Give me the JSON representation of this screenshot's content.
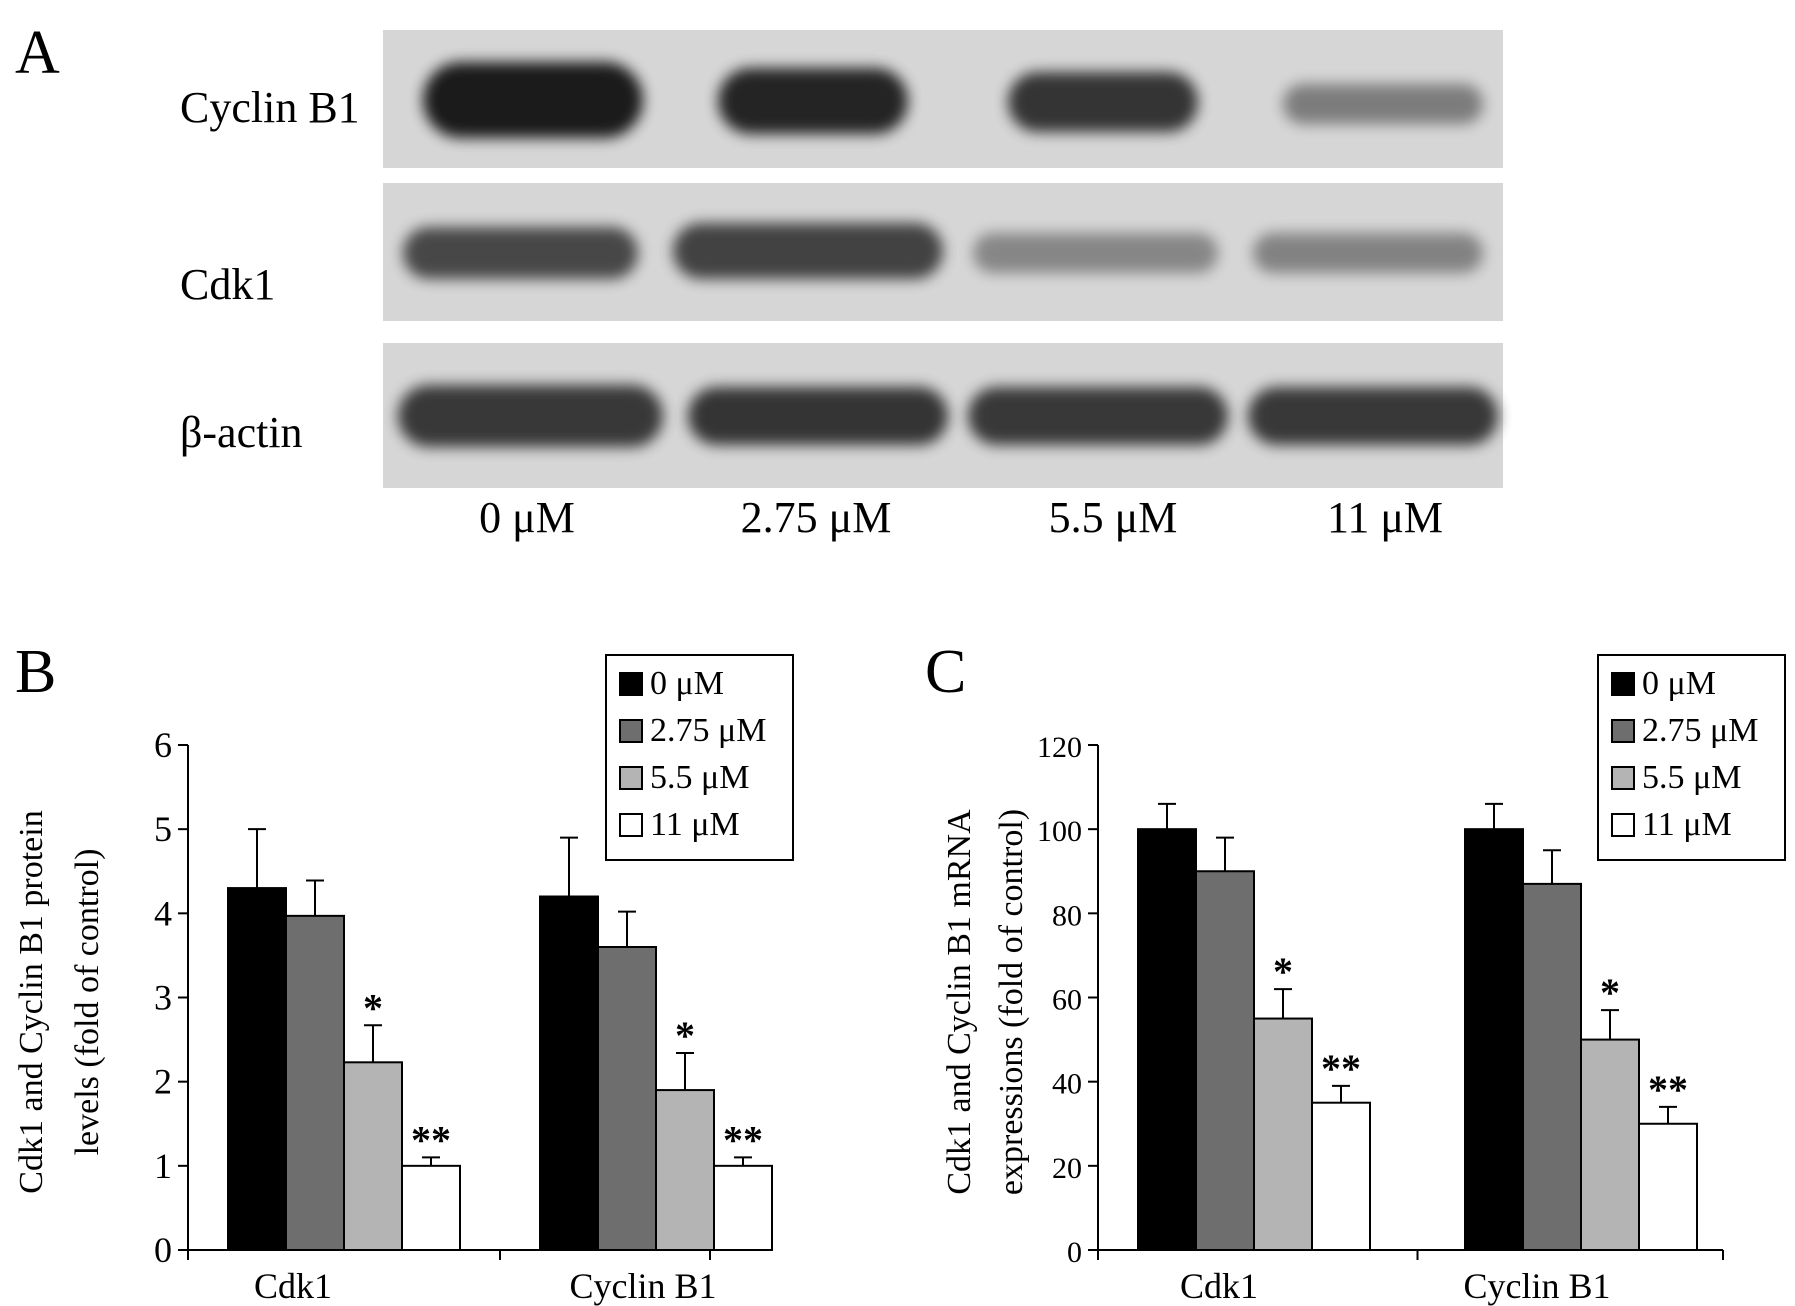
{
  "panel_a": {
    "letter": "A",
    "rows": [
      "Cyclin B1",
      "Cdk1",
      "β-actin"
    ],
    "lanes": [
      "0 μM",
      "2.75 μM",
      "5.5 μM",
      "11 μM"
    ],
    "band_intensity": [
      [
        0.95,
        0.9,
        0.82,
        0.45
      ],
      [
        0.72,
        0.75,
        0.4,
        0.42
      ],
      [
        0.8,
        0.82,
        0.8,
        0.8
      ]
    ]
  },
  "chart_data": [
    {
      "panel": "B",
      "type": "bar",
      "categories": [
        "Cdk1",
        "Cyclin B1"
      ],
      "series": [
        {
          "name": "0 μM",
          "values": [
            4.3,
            4.2
          ],
          "errors": [
            0.7,
            0.7
          ],
          "color": "#000000"
        },
        {
          "name": "2.75 μM",
          "values": [
            3.97,
            3.6
          ],
          "errors": [
            0.42,
            0.42
          ],
          "color": "#6e6e6e"
        },
        {
          "name": "5.5 μM",
          "values": [
            2.23,
            1.9
          ],
          "errors": [
            0.44,
            0.44
          ],
          "color": "#b4b4b4"
        },
        {
          "name": "11 μM",
          "values": [
            1.0,
            1.0
          ],
          "errors": [
            0.1,
            0.1
          ],
          "color": "#ffffff"
        }
      ],
      "significance": [
        [
          "",
          "",
          "*",
          "**"
        ],
        [
          "",
          "",
          "*",
          "**"
        ]
      ],
      "ylabel_lines": [
        "Cdk1 and Cyclin B1 protein",
        "levels (fold of control)"
      ],
      "ylim": [
        0,
        6
      ],
      "yticks": [
        0,
        1,
        2,
        3,
        4,
        5,
        6
      ],
      "legend": "top-right"
    },
    {
      "panel": "C",
      "type": "bar",
      "categories": [
        "Cdk1",
        "Cyclin B1"
      ],
      "series": [
        {
          "name": "0 μM",
          "values": [
            100,
            100
          ],
          "errors": [
            6,
            6
          ],
          "color": "#000000"
        },
        {
          "name": "2.75 μM",
          "values": [
            90,
            87
          ],
          "errors": [
            8,
            8
          ],
          "color": "#6e6e6e"
        },
        {
          "name": "5.5 μM",
          "values": [
            55,
            50
          ],
          "errors": [
            7,
            7
          ],
          "color": "#b4b4b4"
        },
        {
          "name": "11 μM",
          "values": [
            35,
            30
          ],
          "errors": [
            4,
            4
          ],
          "color": "#ffffff"
        }
      ],
      "significance": [
        [
          "",
          "",
          "*",
          "**"
        ],
        [
          "",
          "",
          "*",
          "**"
        ]
      ],
      "ylabel_lines": [
        "Cdk1 and Cyclin B1 mRNA",
        "expressions (fold of control)"
      ],
      "ylim": [
        0,
        120
      ],
      "yticks": [
        0,
        20,
        40,
        60,
        80,
        100,
        120
      ],
      "legend": "top-right"
    }
  ]
}
